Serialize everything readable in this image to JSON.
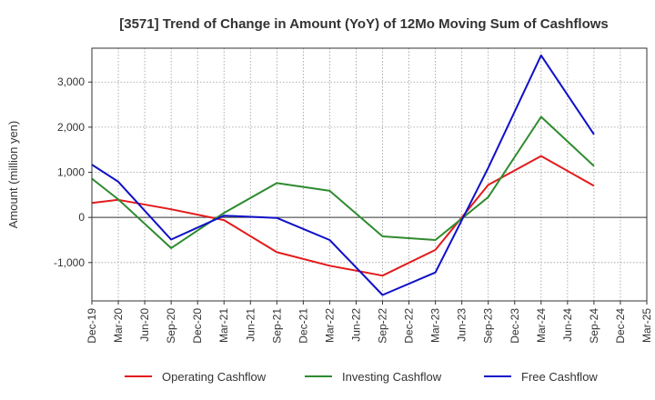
{
  "chart_data": {
    "type": "line",
    "title": "[3571]  Trend of Change in Amount (YoY) of 12Mo Moving Sum of Cashflows",
    "xlabel": "",
    "ylabel": "Amount (million yen)",
    "ylim": [
      -1850,
      3750
    ],
    "yticks": [
      3000,
      2000,
      1000,
      0,
      -1000
    ],
    "ytick_labels": [
      "3,000",
      "2,000",
      "1,000",
      "0",
      "-1,000"
    ],
    "categories": [
      "Dec-19",
      "Mar-20",
      "Jun-20",
      "Sep-20",
      "Dec-20",
      "Mar-21",
      "Jun-21",
      "Sep-21",
      "Dec-21",
      "Mar-22",
      "Jun-22",
      "Sep-22",
      "Dec-22",
      "Mar-23",
      "Jun-23",
      "Sep-23",
      "Dec-23",
      "Mar-24",
      "Jun-24",
      "Sep-24",
      "Dec-24",
      "Mar-25"
    ],
    "grid": true,
    "legend_position": "bottom",
    "series": [
      {
        "name": "Operating Cashflow",
        "color": "#e31a1c",
        "values": [
          320,
          390,
          null,
          180,
          null,
          -60,
          null,
          -770,
          null,
          -1070,
          null,
          -1290,
          null,
          -720,
          null,
          720,
          null,
          1360,
          null,
          700,
          null,
          null
        ]
      },
      {
        "name": "Investing Cashflow",
        "color": "#2e8b2e",
        "values": [
          860,
          400,
          null,
          -680,
          null,
          100,
          null,
          760,
          null,
          590,
          null,
          -420,
          null,
          -500,
          null,
          450,
          null,
          2230,
          null,
          1140,
          null,
          null
        ]
      },
      {
        "name": "Free Cashflow",
        "color": "#1010c8",
        "values": [
          1170,
          790,
          null,
          -490,
          null,
          40,
          null,
          -10,
          null,
          -500,
          null,
          -1720,
          null,
          -1220,
          null,
          1100,
          null,
          3590,
          null,
          1840,
          null,
          null
        ]
      }
    ]
  }
}
